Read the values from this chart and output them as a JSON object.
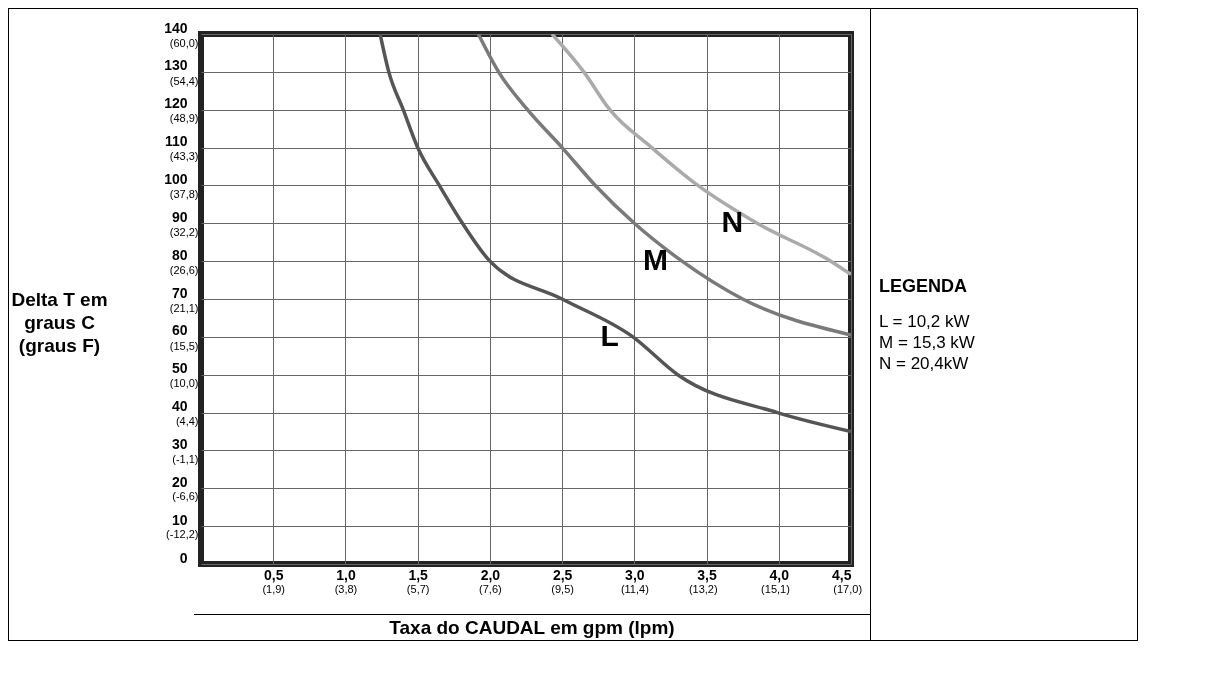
{
  "chart_data": {
    "type": "line",
    "ylabel": "Delta T em graus C (graus F)",
    "xlabel": "Taxa do CAUDAL em gpm (lpm)",
    "xlim": [
      0,
      4.5
    ],
    "ylim": [
      0,
      140
    ],
    "xticks": [
      {
        "value": 0.5,
        "label": "0,5"
      },
      {
        "value": 1,
        "label": "1,0"
      },
      {
        "value": 1.5,
        "label": "1,5"
      },
      {
        "value": 2,
        "label": "2,0"
      },
      {
        "value": 2.5,
        "label": "2,5"
      },
      {
        "value": 3,
        "label": "3,0"
      },
      {
        "value": 3.5,
        "label": "3,5"
      },
      {
        "value": 4,
        "label": "4,0"
      },
      {
        "value": 4.5,
        "label": "4,5"
      }
    ],
    "yticks": [
      0,
      10,
      20,
      30,
      40,
      50,
      60,
      70,
      80,
      90,
      100,
      110,
      120,
      130,
      140
    ],
    "x2lim": [
      0,
      17.1
    ],
    "x2ticks": [
      {
        "value": 1.9,
        "label": "(1,9)"
      },
      {
        "value": 3.8,
        "label": "(3,8)"
      },
      {
        "value": 5.7,
        "label": "(5,7)"
      },
      {
        "value": 7.6,
        "label": "(7,6)"
      },
      {
        "value": 9.5,
        "label": "(9,5)"
      },
      {
        "value": 11.4,
        "label": "(11,4)"
      },
      {
        "value": 13.2,
        "label": "(13,2)"
      },
      {
        "value": 15.1,
        "label": "(15,1)"
      },
      {
        "value": 17.0,
        "label": "(17,0)"
      }
    ],
    "y2lim": [
      -17.8,
      60
    ],
    "y2ticks": [
      {
        "value": -12.2,
        "label": "(-12,2)"
      },
      {
        "value": -6.6,
        "label": "(-6,6)"
      },
      {
        "value": -1.1,
        "label": "(-1,1)"
      },
      {
        "value": 4.4,
        "label": "(4,4)"
      },
      {
        "value": 10.0,
        "label": "(10,0)"
      },
      {
        "value": 15.5,
        "label": "(15,5)"
      },
      {
        "value": 21.1,
        "label": "(21,1)"
      },
      {
        "value": 26.6,
        "label": "(26,6)"
      },
      {
        "value": 32.2,
        "label": "(32,2)"
      },
      {
        "value": 37.8,
        "label": "(37,8)"
      },
      {
        "value": 43.3,
        "label": "(43,3)"
      },
      {
        "value": 48.9,
        "label": "(48,9)"
      },
      {
        "value": 54.4,
        "label": "(54,4)"
      },
      {
        "value": 60.0,
        "label": "(60,0)"
      }
    ],
    "grid": true,
    "series": [
      {
        "name": "L",
        "color": "#555555",
        "x": [
          1.24,
          1.3,
          1.4,
          1.5,
          1.65,
          1.81,
          2.0,
          2.5,
          2.99,
          3.3,
          3.99,
          4.5
        ],
        "values": [
          140,
          130,
          120,
          110,
          100,
          90,
          80,
          70,
          60,
          50,
          40,
          35
        ]
      },
      {
        "name": "M",
        "color": "#7a7a7a",
        "x": [
          1.92,
          2.06,
          2.26,
          2.5,
          2.73,
          3.0,
          3.33,
          3.75,
          4.5
        ],
        "values": [
          140,
          130,
          120,
          110,
          100,
          90,
          80,
          70,
          60.5
        ]
      },
      {
        "name": "N",
        "color": "#aaaaaa",
        "x": [
          2.43,
          2.65,
          2.83,
          3.12,
          3.44,
          3.85,
          4.36,
          4.5
        ],
        "values": [
          140,
          130,
          120,
          110,
          100,
          90,
          80,
          76.5
        ]
      }
    ],
    "annotations": [
      "LEGENDA",
      "L = 10,2 kW",
      "M = 15,3 kW",
      "N = 20,4kW"
    ]
  }
}
